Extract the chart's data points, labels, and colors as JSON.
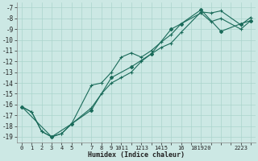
{
  "xlabel": "Humidex (Indice chaleur)",
  "bg_color": "#cce8e4",
  "grid_color": "#aad4cc",
  "line_color": "#1a6b5a",
  "xlim": [
    -0.5,
    23.5
  ],
  "ylim": [
    -19.5,
    -6.5
  ],
  "xticks_major": [
    0,
    1,
    2,
    3,
    4,
    5,
    6,
    7,
    8,
    9,
    10,
    11,
    12,
    13,
    14,
    15,
    16,
    17,
    18,
    19,
    20,
    21,
    22,
    23
  ],
  "xtick_labels": [
    "0",
    "1",
    "2",
    "3",
    "4",
    "5",
    "",
    "7",
    "8",
    "9",
    "1011",
    "",
    "1213",
    "",
    "1415",
    "",
    "16",
    "",
    "181920",
    "",
    "",
    "",
    "2223",
    ""
  ],
  "yticks": [
    -7,
    -8,
    -9,
    -10,
    -11,
    -12,
    -13,
    -14,
    -15,
    -16,
    -17,
    -18,
    -19
  ],
  "line1_x": [
    0,
    1,
    2,
    3,
    4,
    5,
    7,
    8,
    9,
    10,
    11,
    12,
    13,
    14,
    15,
    16,
    18,
    19,
    20,
    22,
    23
  ],
  "line1_y": [
    -16.2,
    -16.7,
    -18.5,
    -19.0,
    -18.7,
    -17.8,
    -16.3,
    -15.0,
    -14.0,
    -13.5,
    -13.0,
    -12.0,
    -11.3,
    -10.7,
    -10.3,
    -9.3,
    -7.4,
    -7.5,
    -7.3,
    -8.6,
    -7.9
  ],
  "line2_x": [
    0,
    1,
    2,
    3,
    4,
    5,
    7,
    8,
    9,
    10,
    11,
    12,
    13,
    14,
    15,
    16,
    18,
    19,
    20,
    22,
    23
  ],
  "line2_y": [
    -16.2,
    -16.7,
    -18.5,
    -19.0,
    -18.7,
    -17.8,
    -14.2,
    -14.0,
    -13.0,
    -11.6,
    -11.2,
    -11.6,
    -11.0,
    -10.2,
    -9.5,
    -8.5,
    -7.5,
    -8.3,
    -8.0,
    -9.0,
    -8.2
  ],
  "line3_x": [
    0,
    3,
    5,
    7,
    9,
    11,
    13,
    15,
    16,
    18,
    20,
    22,
    23
  ],
  "line3_y": [
    -16.2,
    -19.0,
    -17.8,
    -16.5,
    -13.5,
    -12.5,
    -11.3,
    -9.0,
    -8.5,
    -7.2,
    -9.2,
    -8.5,
    -8.2
  ]
}
